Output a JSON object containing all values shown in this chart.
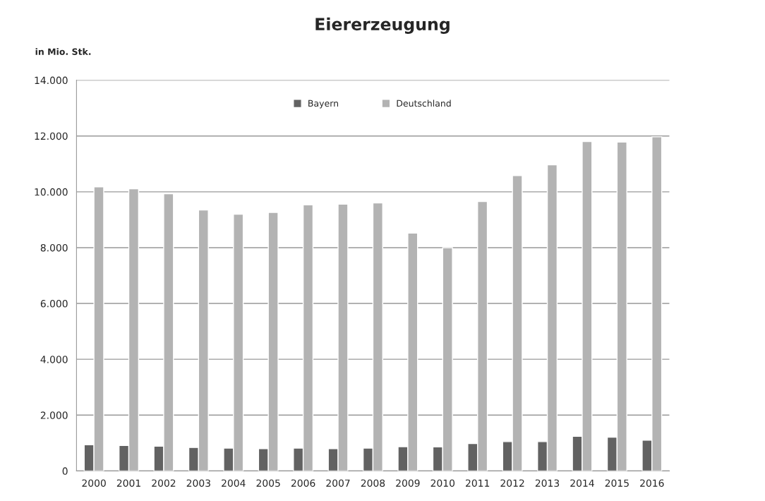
{
  "chart_data": {
    "type": "bar",
    "title": "Eiererzeugung",
    "ylabel": "in Mio. Stk.",
    "categories": [
      "2000",
      "2001",
      "2002",
      "2003",
      "2004",
      "2005",
      "2006",
      "2007",
      "2008",
      "2009",
      "2010",
      "2011",
      "2012",
      "2013",
      "2014",
      "2015",
      "2016"
    ],
    "series": [
      {
        "name": "Bayern",
        "color": "#626262",
        "values": [
          940,
          910,
          890,
          840,
          820,
          800,
          820,
          800,
          820,
          870,
          860,
          980,
          1050,
          1050,
          1240,
          1210,
          1100
        ]
      },
      {
        "name": "Deutschland",
        "color": "#b3b3b3",
        "values": [
          10180,
          10110,
          9930,
          9350,
          9200,
          9260,
          9530,
          9560,
          9600,
          8520,
          8000,
          9650,
          10580,
          10970,
          11800,
          11780,
          11970
        ]
      }
    ],
    "ylim": [
      0,
      14000
    ],
    "yticks": [
      {
        "value": 0,
        "label": "0"
      },
      {
        "value": 2000,
        "label": "2.000"
      },
      {
        "value": 4000,
        "label": "4.000"
      },
      {
        "value": 6000,
        "label": "6.000"
      },
      {
        "value": 8000,
        "label": "8.000"
      },
      {
        "value": 10000,
        "label": "10.000"
      },
      {
        "value": 12000,
        "label": "12.000"
      },
      {
        "value": 14000,
        "label": "14.000"
      }
    ],
    "grid": "y",
    "legend": "top"
  }
}
